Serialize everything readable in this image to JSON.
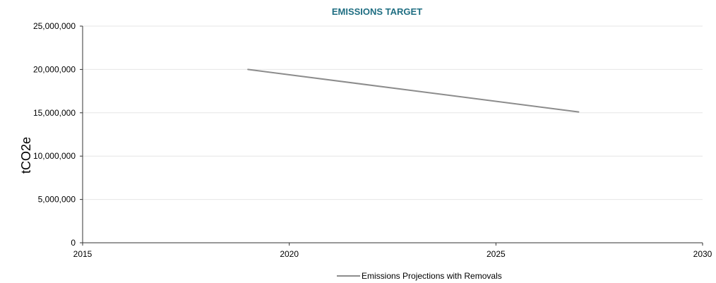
{
  "chart_data": {
    "type": "line",
    "title": "EMISSIONS TARGET",
    "xlabel": "",
    "ylabel": "tCO2e",
    "xlim": [
      2015,
      2030
    ],
    "ylim": [
      0,
      25000000
    ],
    "x_ticks": [
      2015,
      2020,
      2025,
      2030
    ],
    "x_tick_labels": [
      "2015",
      "2020",
      "2025",
      "2030"
    ],
    "y_ticks": [
      0,
      5000000,
      10000000,
      15000000,
      20000000,
      25000000
    ],
    "y_tick_labels": [
      "0",
      "5,000,000",
      "10,000,000",
      "15,000,000",
      "20,000,000",
      "25,000,000"
    ],
    "grid": true,
    "legend_position": "bottom",
    "series": [
      {
        "name": "Emissions Projections with Removals",
        "color": "#8c8c8c",
        "points": [
          {
            "x": 2019,
            "y": 20000000
          },
          {
            "x": 2027,
            "y": 15100000
          }
        ]
      }
    ],
    "colors": {
      "title": "#1f6e82",
      "grid": "#e6e6e6",
      "axis": "#333333"
    }
  }
}
